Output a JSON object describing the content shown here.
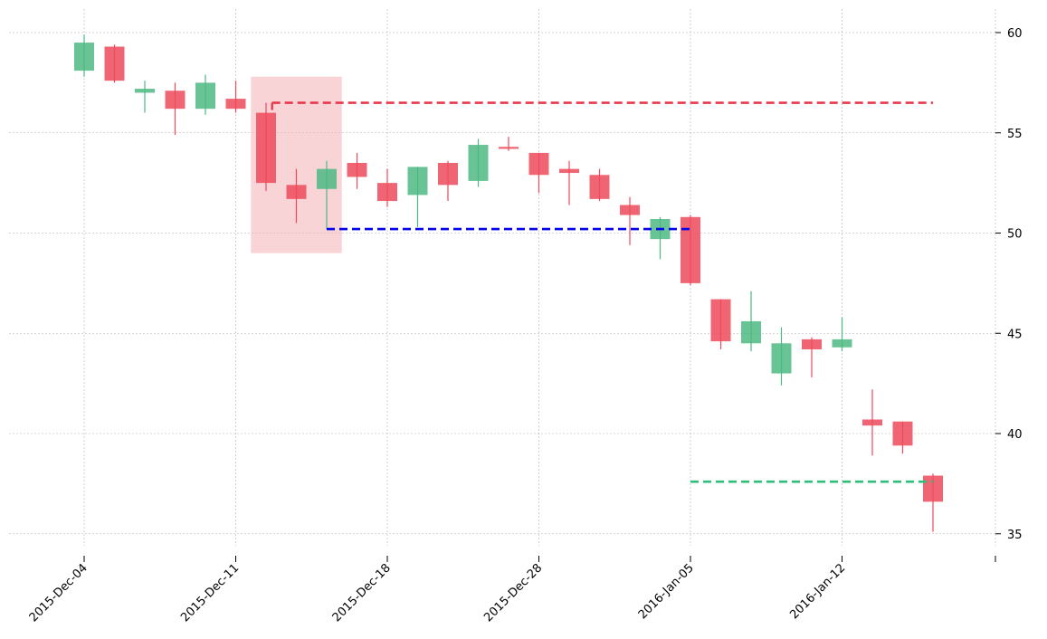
{
  "chart_data": {
    "type": "candlestick",
    "title": "",
    "xlabel": "",
    "ylabel": "",
    "ylim": [
      34,
      61
    ],
    "yticks": [
      35,
      40,
      45,
      50,
      55,
      60
    ],
    "grid": true,
    "xtick_labels": [
      {
        "index": 0,
        "label": "2015-Dec-04"
      },
      {
        "index": 5,
        "label": "2015-Dec-11"
      },
      {
        "index": 10,
        "label": "2015-Dec-18"
      },
      {
        "index": 15,
        "label": "2015-Dec-28"
      },
      {
        "index": 20,
        "label": "2016-Jan-05"
      },
      {
        "index": 25,
        "label": "2016-Jan-12"
      }
    ],
    "candles": [
      {
        "open": 58.1,
        "high": 59.9,
        "low": 57.8,
        "close": 59.5
      },
      {
        "open": 59.3,
        "high": 59.4,
        "low": 57.5,
        "close": 57.6
      },
      {
        "open": 57.0,
        "high": 57.6,
        "low": 56.0,
        "close": 57.2
      },
      {
        "open": 57.1,
        "high": 57.5,
        "low": 54.9,
        "close": 56.2
      },
      {
        "open": 56.2,
        "high": 57.9,
        "low": 55.9,
        "close": 57.5
      },
      {
        "open": 56.7,
        "high": 57.6,
        "low": 56.0,
        "close": 56.2
      },
      {
        "open": 56.0,
        "high": 56.5,
        "low": 52.1,
        "close": 52.5
      },
      {
        "open": 52.4,
        "high": 53.2,
        "low": 50.5,
        "close": 51.7
      },
      {
        "open": 52.2,
        "high": 53.6,
        "low": 50.2,
        "close": 53.2
      },
      {
        "open": 53.5,
        "high": 54.0,
        "low": 52.2,
        "close": 52.8
      },
      {
        "open": 52.5,
        "high": 53.2,
        "low": 51.3,
        "close": 51.6
      },
      {
        "open": 51.9,
        "high": 53.3,
        "low": 50.3,
        "close": 53.3
      },
      {
        "open": 53.5,
        "high": 53.6,
        "low": 51.6,
        "close": 52.4
      },
      {
        "open": 52.6,
        "high": 54.7,
        "low": 52.3,
        "close": 54.4
      },
      {
        "open": 54.3,
        "high": 54.8,
        "low": 54.1,
        "close": 54.2
      },
      {
        "open": 54.0,
        "high": 54.0,
        "low": 52.0,
        "close": 52.9
      },
      {
        "open": 53.2,
        "high": 53.6,
        "low": 51.4,
        "close": 53.0
      },
      {
        "open": 52.9,
        "high": 53.2,
        "low": 51.6,
        "close": 51.7
      },
      {
        "open": 51.4,
        "high": 51.8,
        "low": 49.4,
        "close": 50.9
      },
      {
        "open": 49.7,
        "high": 50.8,
        "low": 48.7,
        "close": 50.7
      },
      {
        "open": 50.8,
        "high": 50.9,
        "low": 47.4,
        "close": 47.5
      },
      {
        "open": 46.7,
        "high": 46.7,
        "low": 44.2,
        "close": 44.6
      },
      {
        "open": 44.5,
        "high": 47.1,
        "low": 44.1,
        "close": 45.6
      },
      {
        "open": 43.0,
        "high": 45.3,
        "low": 42.4,
        "close": 44.5
      },
      {
        "open": 44.7,
        "high": 44.8,
        "low": 42.8,
        "close": 44.2
      },
      {
        "open": 44.3,
        "high": 45.8,
        "low": 44.1,
        "close": 44.7
      },
      {
        "open": 40.7,
        "high": 42.2,
        "low": 38.9,
        "close": 40.4
      },
      {
        "open": 40.6,
        "high": 40.6,
        "low": 39.0,
        "close": 39.4
      },
      {
        "open": 37.9,
        "high": 38.0,
        "low": 35.1,
        "close": 36.6
      }
    ],
    "annotations": {
      "highlight_box": {
        "start_index": 5.5,
        "end_index": 8.5,
        "top": 57.8,
        "bottom": 49.0
      },
      "lines": [
        {
          "name": "red-dashed",
          "y": 56.5,
          "start_index": 6.2,
          "end_index": 28.0
        },
        {
          "name": "blue-dashed",
          "y": 50.2,
          "start_index": 8.0,
          "end_index": 20.0
        },
        {
          "name": "green-dashed",
          "y": 37.6,
          "start_index": 20.0,
          "end_index": 28.0
        }
      ]
    },
    "colors": {
      "up": "#4db883",
      "down": "#ed4a5b",
      "highlight": "#f4a9b0",
      "red_line": "#e8394c",
      "blue_line": "#0000ee",
      "green_line": "#2dbe78",
      "grid": "#b0b0b0"
    }
  }
}
